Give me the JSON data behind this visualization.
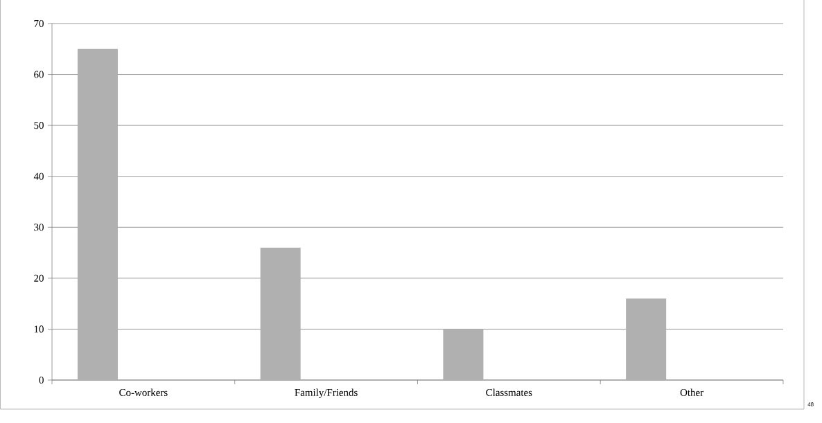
{
  "chart_data": {
    "type": "bar",
    "categories": [
      "Co-workers",
      "Family/Friends",
      "Classmates",
      "Other"
    ],
    "values": [
      65,
      26,
      10,
      16
    ],
    "color": "#b0b0b0",
    "ylim": [
      0,
      70
    ],
    "yticks": [
      0,
      10,
      20,
      30,
      40,
      50,
      60,
      70
    ],
    "grid": "y",
    "annotations": [
      "48"
    ]
  }
}
